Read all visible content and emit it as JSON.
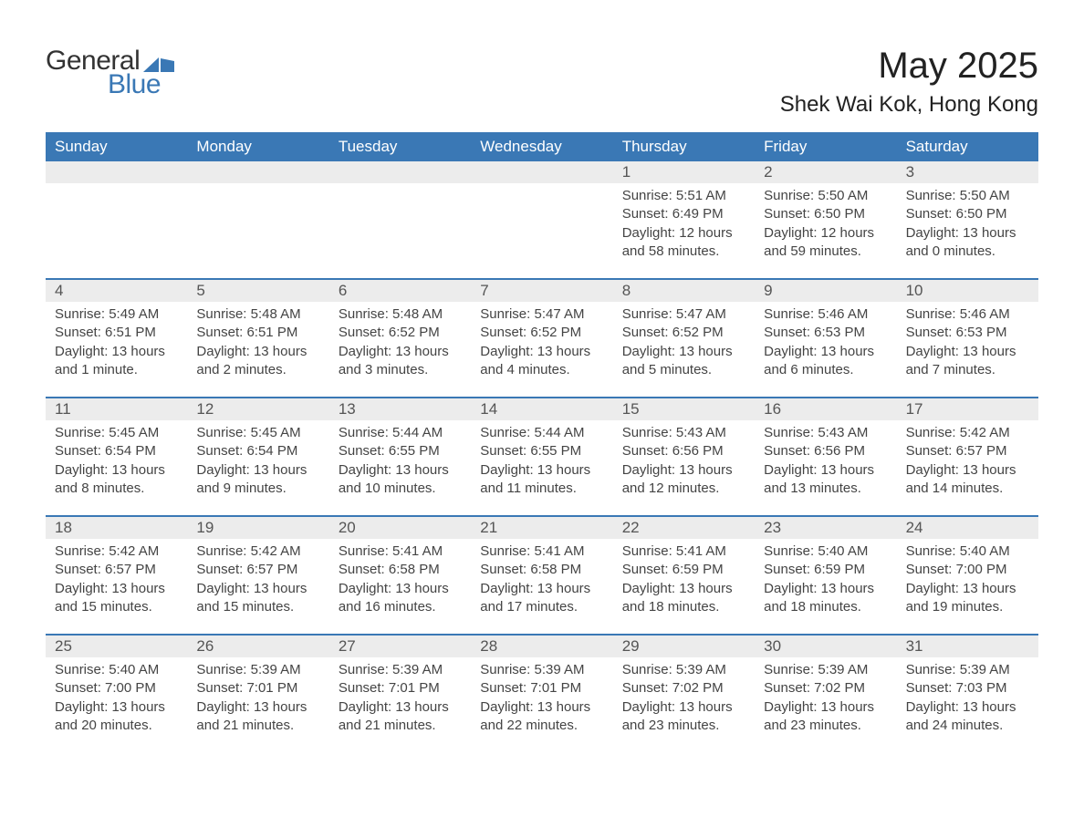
{
  "logo": {
    "text_general": "General",
    "text_blue": "Blue",
    "accent_color": "#3a78b5"
  },
  "title": "May 2025",
  "location": "Shek Wai Kok, Hong Kong",
  "colors": {
    "header_bg": "#3a78b5",
    "header_text": "#ffffff",
    "daynum_bg": "#ececec",
    "body_text": "#444444",
    "border": "#3a78b5"
  },
  "day_names": [
    "Sunday",
    "Monday",
    "Tuesday",
    "Wednesday",
    "Thursday",
    "Friday",
    "Saturday"
  ],
  "weeks": [
    [
      {
        "day": "",
        "sunrise": "",
        "sunset": "",
        "daylight": ""
      },
      {
        "day": "",
        "sunrise": "",
        "sunset": "",
        "daylight": ""
      },
      {
        "day": "",
        "sunrise": "",
        "sunset": "",
        "daylight": ""
      },
      {
        "day": "",
        "sunrise": "",
        "sunset": "",
        "daylight": ""
      },
      {
        "day": "1",
        "sunrise": "Sunrise: 5:51 AM",
        "sunset": "Sunset: 6:49 PM",
        "daylight": "Daylight: 12 hours and 58 minutes."
      },
      {
        "day": "2",
        "sunrise": "Sunrise: 5:50 AM",
        "sunset": "Sunset: 6:50 PM",
        "daylight": "Daylight: 12 hours and 59 minutes."
      },
      {
        "day": "3",
        "sunrise": "Sunrise: 5:50 AM",
        "sunset": "Sunset: 6:50 PM",
        "daylight": "Daylight: 13 hours and 0 minutes."
      }
    ],
    [
      {
        "day": "4",
        "sunrise": "Sunrise: 5:49 AM",
        "sunset": "Sunset: 6:51 PM",
        "daylight": "Daylight: 13 hours and 1 minute."
      },
      {
        "day": "5",
        "sunrise": "Sunrise: 5:48 AM",
        "sunset": "Sunset: 6:51 PM",
        "daylight": "Daylight: 13 hours and 2 minutes."
      },
      {
        "day": "6",
        "sunrise": "Sunrise: 5:48 AM",
        "sunset": "Sunset: 6:52 PM",
        "daylight": "Daylight: 13 hours and 3 minutes."
      },
      {
        "day": "7",
        "sunrise": "Sunrise: 5:47 AM",
        "sunset": "Sunset: 6:52 PM",
        "daylight": "Daylight: 13 hours and 4 minutes."
      },
      {
        "day": "8",
        "sunrise": "Sunrise: 5:47 AM",
        "sunset": "Sunset: 6:52 PM",
        "daylight": "Daylight: 13 hours and 5 minutes."
      },
      {
        "day": "9",
        "sunrise": "Sunrise: 5:46 AM",
        "sunset": "Sunset: 6:53 PM",
        "daylight": "Daylight: 13 hours and 6 minutes."
      },
      {
        "day": "10",
        "sunrise": "Sunrise: 5:46 AM",
        "sunset": "Sunset: 6:53 PM",
        "daylight": "Daylight: 13 hours and 7 minutes."
      }
    ],
    [
      {
        "day": "11",
        "sunrise": "Sunrise: 5:45 AM",
        "sunset": "Sunset: 6:54 PM",
        "daylight": "Daylight: 13 hours and 8 minutes."
      },
      {
        "day": "12",
        "sunrise": "Sunrise: 5:45 AM",
        "sunset": "Sunset: 6:54 PM",
        "daylight": "Daylight: 13 hours and 9 minutes."
      },
      {
        "day": "13",
        "sunrise": "Sunrise: 5:44 AM",
        "sunset": "Sunset: 6:55 PM",
        "daylight": "Daylight: 13 hours and 10 minutes."
      },
      {
        "day": "14",
        "sunrise": "Sunrise: 5:44 AM",
        "sunset": "Sunset: 6:55 PM",
        "daylight": "Daylight: 13 hours and 11 minutes."
      },
      {
        "day": "15",
        "sunrise": "Sunrise: 5:43 AM",
        "sunset": "Sunset: 6:56 PM",
        "daylight": "Daylight: 13 hours and 12 minutes."
      },
      {
        "day": "16",
        "sunrise": "Sunrise: 5:43 AM",
        "sunset": "Sunset: 6:56 PM",
        "daylight": "Daylight: 13 hours and 13 minutes."
      },
      {
        "day": "17",
        "sunrise": "Sunrise: 5:42 AM",
        "sunset": "Sunset: 6:57 PM",
        "daylight": "Daylight: 13 hours and 14 minutes."
      }
    ],
    [
      {
        "day": "18",
        "sunrise": "Sunrise: 5:42 AM",
        "sunset": "Sunset: 6:57 PM",
        "daylight": "Daylight: 13 hours and 15 minutes."
      },
      {
        "day": "19",
        "sunrise": "Sunrise: 5:42 AM",
        "sunset": "Sunset: 6:57 PM",
        "daylight": "Daylight: 13 hours and 15 minutes."
      },
      {
        "day": "20",
        "sunrise": "Sunrise: 5:41 AM",
        "sunset": "Sunset: 6:58 PM",
        "daylight": "Daylight: 13 hours and 16 minutes."
      },
      {
        "day": "21",
        "sunrise": "Sunrise: 5:41 AM",
        "sunset": "Sunset: 6:58 PM",
        "daylight": "Daylight: 13 hours and 17 minutes."
      },
      {
        "day": "22",
        "sunrise": "Sunrise: 5:41 AM",
        "sunset": "Sunset: 6:59 PM",
        "daylight": "Daylight: 13 hours and 18 minutes."
      },
      {
        "day": "23",
        "sunrise": "Sunrise: 5:40 AM",
        "sunset": "Sunset: 6:59 PM",
        "daylight": "Daylight: 13 hours and 18 minutes."
      },
      {
        "day": "24",
        "sunrise": "Sunrise: 5:40 AM",
        "sunset": "Sunset: 7:00 PM",
        "daylight": "Daylight: 13 hours and 19 minutes."
      }
    ],
    [
      {
        "day": "25",
        "sunrise": "Sunrise: 5:40 AM",
        "sunset": "Sunset: 7:00 PM",
        "daylight": "Daylight: 13 hours and 20 minutes."
      },
      {
        "day": "26",
        "sunrise": "Sunrise: 5:39 AM",
        "sunset": "Sunset: 7:01 PM",
        "daylight": "Daylight: 13 hours and 21 minutes."
      },
      {
        "day": "27",
        "sunrise": "Sunrise: 5:39 AM",
        "sunset": "Sunset: 7:01 PM",
        "daylight": "Daylight: 13 hours and 21 minutes."
      },
      {
        "day": "28",
        "sunrise": "Sunrise: 5:39 AM",
        "sunset": "Sunset: 7:01 PM",
        "daylight": "Daylight: 13 hours and 22 minutes."
      },
      {
        "day": "29",
        "sunrise": "Sunrise: 5:39 AM",
        "sunset": "Sunset: 7:02 PM",
        "daylight": "Daylight: 13 hours and 23 minutes."
      },
      {
        "day": "30",
        "sunrise": "Sunrise: 5:39 AM",
        "sunset": "Sunset: 7:02 PM",
        "daylight": "Daylight: 13 hours and 23 minutes."
      },
      {
        "day": "31",
        "sunrise": "Sunrise: 5:39 AM",
        "sunset": "Sunset: 7:03 PM",
        "daylight": "Daylight: 13 hours and 24 minutes."
      }
    ]
  ]
}
